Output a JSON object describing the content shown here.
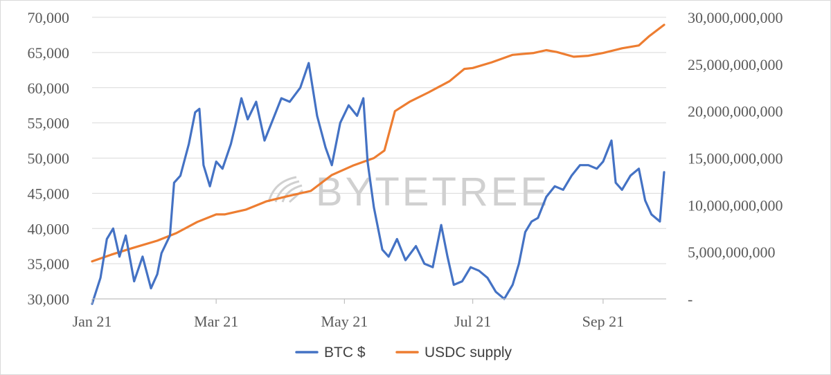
{
  "chart_data": {
    "type": "line",
    "watermark": "BYTETREE",
    "x_ticks": [
      "Jan 21",
      "Mar 21",
      "May 21",
      "Jul 21",
      "Sep 21"
    ],
    "y_left": {
      "min": 30000,
      "max": 70000,
      "ticks": [
        "30,000",
        "35,000",
        "40,000",
        "45,000",
        "50,000",
        "55,000",
        "60,000",
        "65,000",
        "70,000"
      ]
    },
    "y_right": {
      "min": 0,
      "max": 30000000000,
      "ticks": [
        "-",
        "5,000,000,000",
        "10,000,000,000",
        "15,000,000,000",
        "20,000,000,000",
        "25,000,000,000",
        "30,000,000,000"
      ]
    },
    "grid": "horizontal",
    "legend_position": "bottom",
    "series": [
      {
        "name": "BTC $",
        "axis": "left",
        "color": "#4472c4",
        "x": [
          "2021-01-01",
          "2021-01-05",
          "2021-01-08",
          "2021-01-11",
          "2021-01-14",
          "2021-01-17",
          "2021-01-21",
          "2021-01-25",
          "2021-01-29",
          "2021-02-01",
          "2021-02-03",
          "2021-02-07",
          "2021-02-09",
          "2021-02-12",
          "2021-02-16",
          "2021-02-19",
          "2021-02-21",
          "2021-02-23",
          "2021-02-26",
          "2021-03-01",
          "2021-03-04",
          "2021-03-08",
          "2021-03-10",
          "2021-03-13",
          "2021-03-16",
          "2021-03-20",
          "2021-03-24",
          "2021-03-28",
          "2021-04-01",
          "2021-04-05",
          "2021-04-10",
          "2021-04-14",
          "2021-04-18",
          "2021-04-22",
          "2021-04-25",
          "2021-04-29",
          "2021-05-03",
          "2021-05-07",
          "2021-05-10",
          "2021-05-12",
          "2021-05-15",
          "2021-05-19",
          "2021-05-22",
          "2021-05-26",
          "2021-05-30",
          "2021-06-04",
          "2021-06-08",
          "2021-06-12",
          "2021-06-16",
          "2021-06-19",
          "2021-06-22",
          "2021-06-26",
          "2021-06-30",
          "2021-07-04",
          "2021-07-08",
          "2021-07-12",
          "2021-07-16",
          "2021-07-20",
          "2021-07-23",
          "2021-07-26",
          "2021-07-29",
          "2021-08-01",
          "2021-08-05",
          "2021-08-09",
          "2021-08-13",
          "2021-08-17",
          "2021-08-21",
          "2021-08-25",
          "2021-08-29",
          "2021-09-01",
          "2021-09-05",
          "2021-09-07",
          "2021-09-10",
          "2021-09-14",
          "2021-09-18",
          "2021-09-21",
          "2021-09-24",
          "2021-09-28",
          "2021-09-30"
        ],
        "values": [
          29300,
          33000,
          38500,
          40000,
          36000,
          39000,
          32500,
          36000,
          31500,
          33500,
          36500,
          39000,
          46500,
          47500,
          52000,
          56500,
          57000,
          49000,
          46000,
          49500,
          48500,
          52000,
          54500,
          58500,
          55500,
          58000,
          52500,
          55500,
          58500,
          58000,
          60000,
          63500,
          56000,
          51500,
          49000,
          55000,
          57500,
          56000,
          58500,
          49500,
          43000,
          37000,
          36000,
          38500,
          35500,
          37500,
          35000,
          34500,
          40500,
          36000,
          32000,
          32500,
          34500,
          34000,
          33000,
          31000,
          30000,
          32000,
          35000,
          39500,
          41000,
          41500,
          44500,
          46000,
          45500,
          47500,
          49000,
          49000,
          48500,
          49500,
          52500,
          46500,
          45500,
          47500,
          48500,
          44000,
          42000,
          41000,
          48000
        ]
      },
      {
        "name": "USDC supply",
        "axis": "right",
        "color": "#ed7d31",
        "x": [
          "2021-01-01",
          "2021-01-10",
          "2021-01-20",
          "2021-02-01",
          "2021-02-10",
          "2021-02-20",
          "2021-03-01",
          "2021-03-05",
          "2021-03-15",
          "2021-03-25",
          "2021-04-05",
          "2021-04-15",
          "2021-04-25",
          "2021-05-05",
          "2021-05-15",
          "2021-05-20",
          "2021-05-25",
          "2021-06-01",
          "2021-06-10",
          "2021-06-20",
          "2021-06-27",
          "2021-07-01",
          "2021-07-10",
          "2021-07-20",
          "2021-07-30",
          "2021-08-05",
          "2021-08-10",
          "2021-08-18",
          "2021-08-25",
          "2021-09-01",
          "2021-09-10",
          "2021-09-18",
          "2021-09-23",
          "2021-09-30"
        ],
        "values": [
          4000000000,
          4700000000,
          5400000000,
          6200000000,
          7000000000,
          8200000000,
          9000000000,
          9000000000,
          9500000000,
          10400000000,
          11000000000,
          11500000000,
          13200000000,
          14200000000,
          15000000000,
          15800000000,
          20000000000,
          21000000000,
          22000000000,
          23200000000,
          24500000000,
          24600000000,
          25200000000,
          26000000000,
          26200000000,
          26500000000,
          26300000000,
          25800000000,
          25900000000,
          26200000000,
          26700000000,
          27000000000,
          28000000000,
          29200000000
        ]
      }
    ]
  }
}
